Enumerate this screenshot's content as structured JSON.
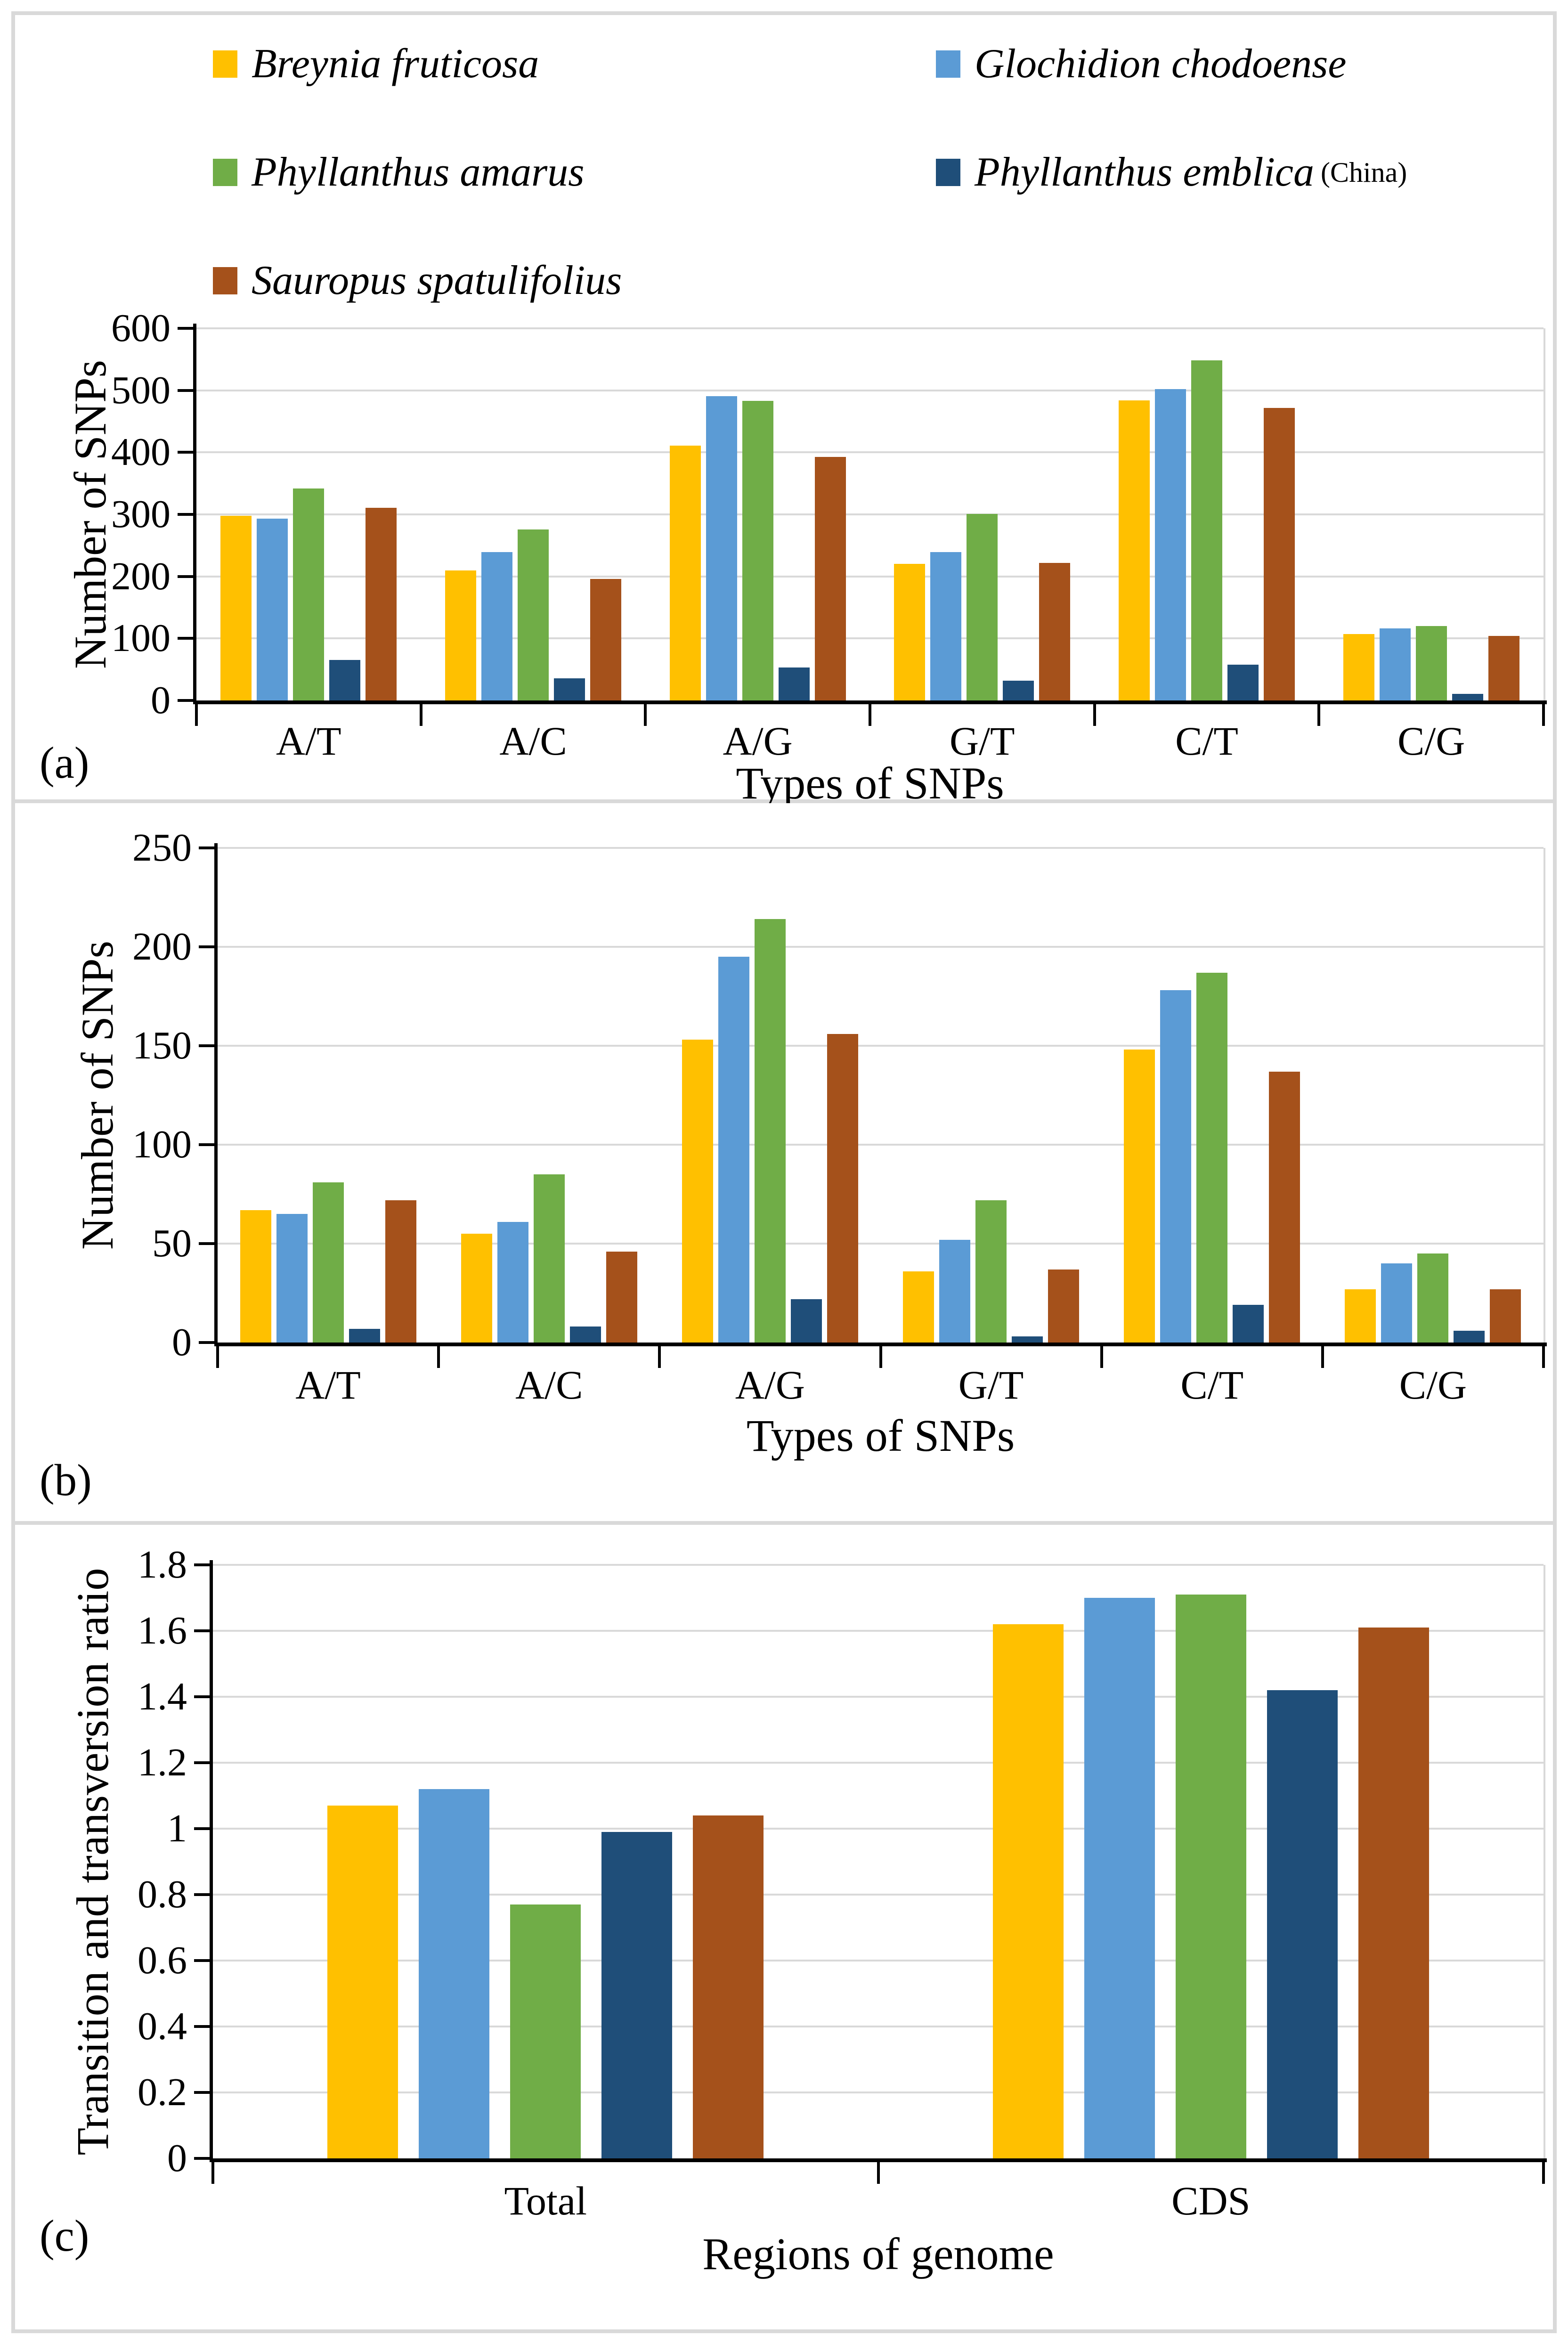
{
  "figure": {
    "border_color": "#D9D9D9",
    "background": "#ffffff"
  },
  "legend": {
    "items": [
      {
        "label": "Breynia fruticosa",
        "note": "",
        "color": "#FFC000"
      },
      {
        "label": "Glochidion chodoense",
        "note": "",
        "color": "#5B9BD5"
      },
      {
        "label": "Phyllanthus amarus",
        "note": "",
        "color": "#70AD47"
      },
      {
        "label": "Phyllanthus emblica",
        "note": "(China)",
        "color": "#1F4E79"
      },
      {
        "label": "Sauropus spatulifolius",
        "note": "",
        "color": "#A5511B"
      }
    ]
  },
  "chart_data": [
    {
      "panel_letter": "(a)",
      "type": "bar",
      "title": "",
      "xlabel": "Types of SNPs",
      "ylabel": "Number of SNPs",
      "ylim": [
        0,
        600
      ],
      "grid": true,
      "legend_position": "top",
      "ytick_labels": [
        "0",
        "100",
        "200",
        "300",
        "400",
        "500",
        "600"
      ],
      "ytick_values": [
        0,
        100,
        200,
        300,
        400,
        500,
        600
      ],
      "categories": [
        "A/T",
        "A/C",
        "A/G",
        "G/T",
        "C/T",
        "C/G"
      ],
      "series": [
        {
          "name": "Breynia fruticosa",
          "color": "#FFC000",
          "values": [
            298,
            210,
            411,
            220,
            484,
            107
          ]
        },
        {
          "name": "Glochidion chodoense",
          "color": "#5B9BD5",
          "values": [
            293,
            239,
            491,
            239,
            502,
            116
          ]
        },
        {
          "name": "Phyllanthus amarus",
          "color": "#70AD47",
          "values": [
            342,
            276,
            483,
            301,
            548,
            120
          ]
        },
        {
          "name": "Phyllanthus emblica (China)",
          "color": "#1F4E79",
          "values": [
            65,
            36,
            53,
            32,
            58,
            11
          ]
        },
        {
          "name": "Sauropus spatulifolius",
          "color": "#A5511B",
          "values": [
            311,
            196,
            393,
            222,
            472,
            104
          ]
        }
      ]
    },
    {
      "panel_letter": "(b)",
      "type": "bar",
      "title": "",
      "xlabel": "Types of SNPs",
      "ylabel": "Number of SNPs",
      "ylim": [
        0,
        250
      ],
      "grid": true,
      "legend_position": "none",
      "ytick_labels": [
        "0",
        "50",
        "100",
        "150",
        "200",
        "250"
      ],
      "ytick_values": [
        0,
        50,
        100,
        150,
        200,
        250
      ],
      "categories": [
        "A/T",
        "A/C",
        "A/G",
        "G/T",
        "C/T",
        "C/G"
      ],
      "series": [
        {
          "name": "Breynia fruticosa",
          "color": "#FFC000",
          "values": [
            67,
            55,
            153,
            36,
            148,
            27
          ]
        },
        {
          "name": "Glochidion chodoense",
          "color": "#5B9BD5",
          "values": [
            65,
            61,
            195,
            52,
            178,
            40
          ]
        },
        {
          "name": "Phyllanthus amarus",
          "color": "#70AD47",
          "values": [
            81,
            85,
            214,
            72,
            187,
            45
          ]
        },
        {
          "name": "Phyllanthus emblica (China)",
          "color": "#1F4E79",
          "values": [
            7,
            8,
            22,
            3,
            19,
            6
          ]
        },
        {
          "name": "Sauropus spatulifolius",
          "color": "#A5511B",
          "values": [
            72,
            46,
            156,
            37,
            137,
            27
          ]
        }
      ]
    },
    {
      "panel_letter": "(c)",
      "type": "bar",
      "title": "",
      "xlabel": "Regions of genome",
      "ylabel": "Transition and transversion ratio",
      "ylim": [
        0,
        1.8
      ],
      "grid": true,
      "legend_position": "none",
      "ytick_labels": [
        "0",
        "0.2",
        "0.4",
        "0.6",
        "0.8",
        "1",
        "1.2",
        "1.4",
        "1.6",
        "1.8"
      ],
      "ytick_values": [
        0,
        0.2,
        0.4,
        0.6,
        0.8,
        1,
        1.2,
        1.4,
        1.6,
        1.8
      ],
      "categories": [
        "Total",
        "CDS"
      ],
      "series": [
        {
          "name": "Breynia fruticosa",
          "color": "#FFC000",
          "values": [
            1.07,
            1.62
          ]
        },
        {
          "name": "Glochidion chodoense",
          "color": "#5B9BD5",
          "values": [
            1.12,
            1.7
          ]
        },
        {
          "name": "Phyllanthus amarus",
          "color": "#70AD47",
          "values": [
            0.77,
            1.71
          ]
        },
        {
          "name": "Phyllanthus emblica (China)",
          "color": "#1F4E79",
          "values": [
            0.99,
            1.42
          ]
        },
        {
          "name": "Sauropus spatulifolius",
          "color": "#A5511B",
          "values": [
            1.04,
            1.61
          ]
        }
      ]
    }
  ]
}
